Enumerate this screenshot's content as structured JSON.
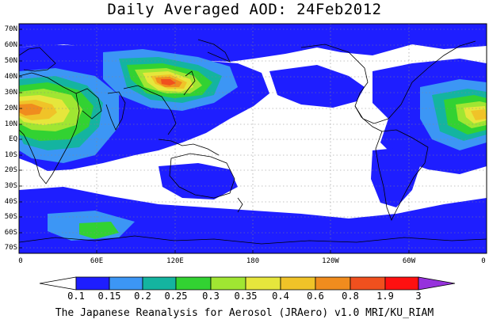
{
  "title": "Daily Averaged AOD: 24Feb2012",
  "footer": "The Japanese Reanalysis for Aerosol (JRAero) v1.0 MRI/KU_RIAM",
  "map": {
    "lat_labels": [
      "70N",
      "60N",
      "50N",
      "40N",
      "30N",
      "20N",
      "10N",
      "EQ",
      "10S",
      "20S",
      "30S",
      "40S",
      "50S",
      "60S",
      "70S"
    ],
    "lon_labels": [
      "0",
      "60E",
      "120E",
      "180",
      "120W",
      "60W",
      "0"
    ],
    "colorbar": {
      "labels": [
        "0.1",
        "0.15",
        "0.2",
        "0.25",
        "0.3",
        "0.35",
        "0.4",
        "0.6",
        "0.8",
        "1.9",
        "3"
      ],
      "colors": [
        "#ffffff",
        "#1e1eff",
        "#3c96f5",
        "#14b4a0",
        "#32d232",
        "#a0e632",
        "#e6e63c",
        "#f0c328",
        "#f08c1e",
        "#f0501e",
        "#ff1010",
        "#9632dc"
      ]
    }
  }
}
